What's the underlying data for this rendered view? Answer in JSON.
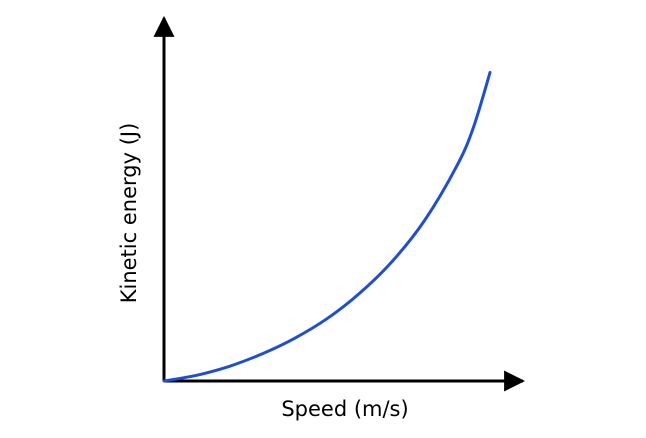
{
  "chart_data": {
    "type": "line",
    "title": "",
    "xlabel": "Speed (m/s)",
    "ylabel": "Kinetic energy (J)",
    "xlim": [
      0,
      1
    ],
    "ylim": [
      0,
      1
    ],
    "grid": false,
    "ticks": false,
    "colors": {
      "curve": "#1f4fcf",
      "axis": "#000000"
    },
    "series": [
      {
        "x": [
          0,
          0.1,
          0.2,
          0.3,
          0.4,
          0.5,
          0.6,
          0.7,
          0.8,
          0.9,
          0.95,
          1.0
        ],
        "values": [
          0,
          0.018,
          0.046,
          0.085,
          0.134,
          0.196,
          0.276,
          0.376,
          0.506,
          0.68,
          0.8,
          0.97
        ]
      }
    ]
  }
}
